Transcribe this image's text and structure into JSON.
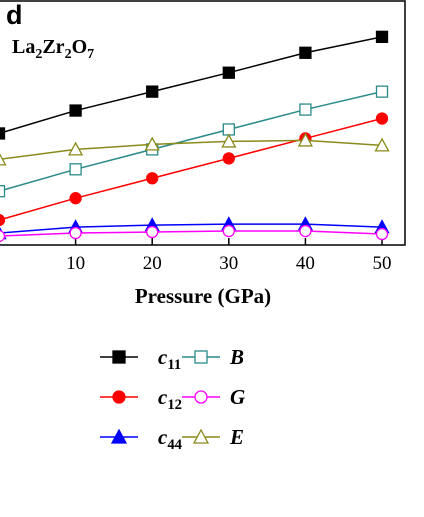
{
  "chart_data": {
    "type": "line",
    "panel": "d",
    "annotation": "La2Zr2O7",
    "xlabel": "Pressure (GPa)",
    "x": [
      0,
      10,
      20,
      30,
      40,
      50
    ],
    "xlim": [
      0,
      53
    ],
    "xticks": [
      10,
      20,
      30,
      40,
      50
    ],
    "ylim": [
      0,
      245
    ],
    "series": [
      {
        "name": "c11",
        "color": "#000000",
        "marker": "square",
        "filled": true,
        "values": [
          112,
          135,
          154,
          173,
          193,
          209
        ]
      },
      {
        "name": "c12",
        "color": "#ff0000",
        "marker": "circle",
        "filled": true,
        "values": [
          25,
          47,
          67,
          87,
          107,
          127
        ]
      },
      {
        "name": "c44",
        "color": "#0000ff",
        "marker": "triangle",
        "filled": true,
        "values": [
          12,
          18,
          20,
          21,
          21,
          18
        ]
      },
      {
        "name": "B",
        "color": "#2a8a8a",
        "marker": "square",
        "filled": false,
        "values": [
          54,
          76,
          96,
          116,
          136,
          154
        ]
      },
      {
        "name": "G",
        "color": "#ff00ff",
        "marker": "circle",
        "filled": false,
        "values": [
          9,
          12,
          13,
          14,
          14,
          11
        ]
      },
      {
        "name": "E",
        "color": "#8a8a1a",
        "marker": "triangle",
        "filled": false,
        "values": [
          86,
          96,
          101,
          104,
          105,
          100
        ]
      }
    ]
  }
}
